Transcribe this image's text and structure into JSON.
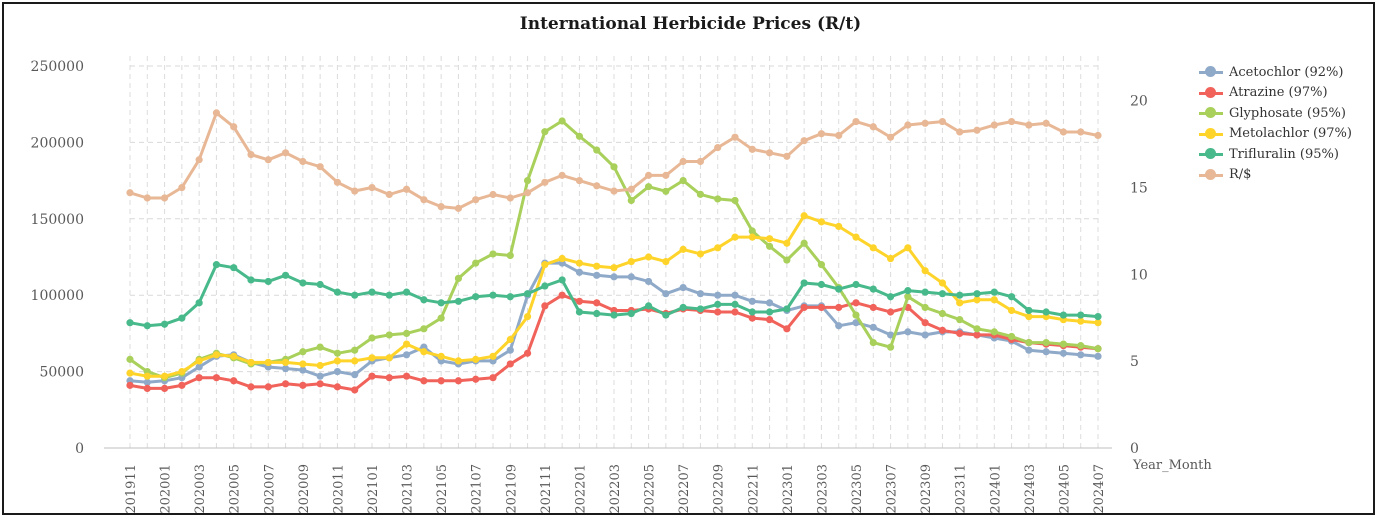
{
  "chart_data": {
    "type": "line",
    "title": "International Herbicide Prices (R/t)",
    "xlabel": "Year_Month",
    "ylabel": "",
    "y2label": "",
    "ylim": [
      0,
      250000
    ],
    "yticks": [
      0,
      50000,
      100000,
      150000,
      200000,
      250000
    ],
    "y2lim": [
      0,
      22
    ],
    "y2ticks": [
      0,
      5,
      10,
      15,
      20
    ],
    "x": [
      "201911",
      "201912",
      "202001",
      "202002",
      "202003",
      "202004",
      "202005",
      "202006",
      "202007",
      "202008",
      "202009",
      "202010",
      "202011",
      "202012",
      "202101",
      "202102",
      "202103",
      "202104",
      "202105",
      "202106",
      "202107",
      "202108",
      "202109",
      "202110",
      "202111",
      "202112",
      "202201",
      "202202",
      "202203",
      "202204",
      "202205",
      "202206",
      "202207",
      "202208",
      "202209",
      "202210",
      "202211",
      "202212",
      "202301",
      "202302",
      "202303",
      "202304",
      "202305",
      "202306",
      "202307",
      "202308",
      "202309",
      "202310",
      "202311",
      "202312",
      "202401",
      "202402",
      "202403",
      "202404",
      "202405",
      "202406",
      "202407"
    ],
    "xtick_labels": [
      "201911",
      "202001",
      "202003",
      "202005",
      "202007",
      "202009",
      "202011",
      "202101",
      "202103",
      "202105",
      "202107",
      "202109",
      "202111",
      "202201",
      "202203",
      "202205",
      "202207",
      "202209",
      "202211",
      "202301",
      "202303",
      "202305",
      "202307",
      "202309",
      "202311",
      "202401",
      "202403",
      "202405",
      "202407"
    ],
    "grid": true,
    "legend_position": "right",
    "series": [
      {
        "name": "Acetochlor (92%)",
        "color": "#8fa9c9",
        "axis": "left",
        "values": [
          44000,
          43000,
          44000,
          46000,
          53000,
          60000,
          61000,
          56000,
          53000,
          52000,
          51000,
          47000,
          50000,
          48000,
          57000,
          59000,
          61000,
          66000,
          57000,
          55000,
          57000,
          57000,
          64000,
          100000,
          121000,
          121000,
          115000,
          113000,
          112000,
          112000,
          109000,
          101000,
          105000,
          101000,
          100000,
          100000,
          96000,
          95000,
          90000,
          93000,
          93000,
          80000,
          82000,
          79000,
          74000,
          76000,
          74000,
          76000,
          76000,
          74000,
          72000,
          70000,
          64000,
          63000,
          62000,
          61000,
          60000
        ]
      },
      {
        "name": "Atrazine (97%)",
        "color": "#f0625a",
        "axis": "left",
        "values": [
          41000,
          39000,
          39000,
          41000,
          46000,
          46000,
          44000,
          40000,
          40000,
          42000,
          41000,
          42000,
          40000,
          38000,
          47000,
          46000,
          47000,
          44000,
          44000,
          44000,
          45000,
          46000,
          55000,
          62000,
          93000,
          100000,
          96000,
          95000,
          90000,
          90000,
          91000,
          88000,
          91000,
          90000,
          89000,
          89000,
          85000,
          84000,
          78000,
          92000,
          92000,
          92000,
          95000,
          92000,
          89000,
          92000,
          82000,
          77000,
          75000,
          74000,
          74000,
          71000,
          69000,
          68000,
          67000,
          66000,
          65000
        ]
      },
      {
        "name": "Glyphosate (95%)",
        "color": "#a8d05a",
        "axis": "left",
        "values": [
          58000,
          50000,
          46000,
          49000,
          58000,
          62000,
          59000,
          55000,
          56000,
          58000,
          63000,
          66000,
          62000,
          64000,
          72000,
          74000,
          75000,
          78000,
          85000,
          111000,
          121000,
          127000,
          126000,
          175000,
          207000,
          214000,
          204000,
          195000,
          184000,
          162000,
          171000,
          168000,
          175000,
          166000,
          163000,
          162000,
          142000,
          132000,
          123000,
          134000,
          120000,
          105000,
          87000,
          69000,
          66000,
          99000,
          92000,
          88000,
          84000,
          78000,
          76000,
          73000,
          69000,
          69000,
          68000,
          67000,
          65000
        ]
      },
      {
        "name": "Metolachlor (97%)",
        "color": "#ffd42a",
        "axis": "left",
        "values": [
          49000,
          47000,
          47000,
          50000,
          57000,
          61000,
          60000,
          56000,
          56000,
          56000,
          55000,
          54000,
          57000,
          57000,
          59000,
          59000,
          68000,
          63000,
          60000,
          57000,
          58000,
          60000,
          71000,
          86000,
          120000,
          124000,
          121000,
          119000,
          118000,
          122000,
          125000,
          122000,
          130000,
          127000,
          131000,
          138000,
          138000,
          137000,
          134000,
          152000,
          148000,
          145000,
          138000,
          131000,
          124000,
          131000,
          116000,
          108000,
          95000,
          97000,
          97000,
          90000,
          86000,
          86000,
          84000,
          83000,
          82000
        ]
      },
      {
        "name": "Trifluralin (95%)",
        "color": "#47b98a",
        "axis": "left",
        "values": [
          82000,
          80000,
          81000,
          85000,
          95000,
          120000,
          118000,
          110000,
          109000,
          113000,
          108000,
          107000,
          102000,
          100000,
          102000,
          100000,
          102000,
          97000,
          95000,
          96000,
          99000,
          100000,
          99000,
          101000,
          106000,
          110000,
          89000,
          88000,
          87000,
          88000,
          93000,
          87000,
          92000,
          91000,
          94000,
          94000,
          89000,
          89000,
          91000,
          108000,
          107000,
          104000,
          107000,
          104000,
          99000,
          103000,
          102000,
          101000,
          100000,
          101000,
          102000,
          99000,
          90000,
          89000,
          87000,
          87000,
          86000
        ]
      },
      {
        "name": "R/$",
        "color": "#e8b896",
        "axis": "right",
        "values": [
          14.7,
          14.4,
          14.4,
          15.0,
          16.6,
          19.3,
          18.5,
          16.9,
          16.6,
          17.0,
          16.5,
          16.2,
          15.3,
          14.8,
          15.0,
          14.6,
          14.9,
          14.3,
          13.9,
          13.8,
          14.3,
          14.6,
          14.4,
          14.7,
          15.3,
          15.7,
          15.4,
          15.1,
          14.8,
          14.9,
          15.7,
          15.7,
          16.5,
          16.5,
          17.3,
          17.9,
          17.2,
          17.0,
          16.8,
          17.7,
          18.1,
          18.0,
          18.8,
          18.5,
          17.9,
          18.6,
          18.7,
          18.8,
          18.2,
          18.3,
          18.6,
          18.8,
          18.6,
          18.7,
          18.2,
          18.2,
          18.0
        ]
      }
    ]
  }
}
